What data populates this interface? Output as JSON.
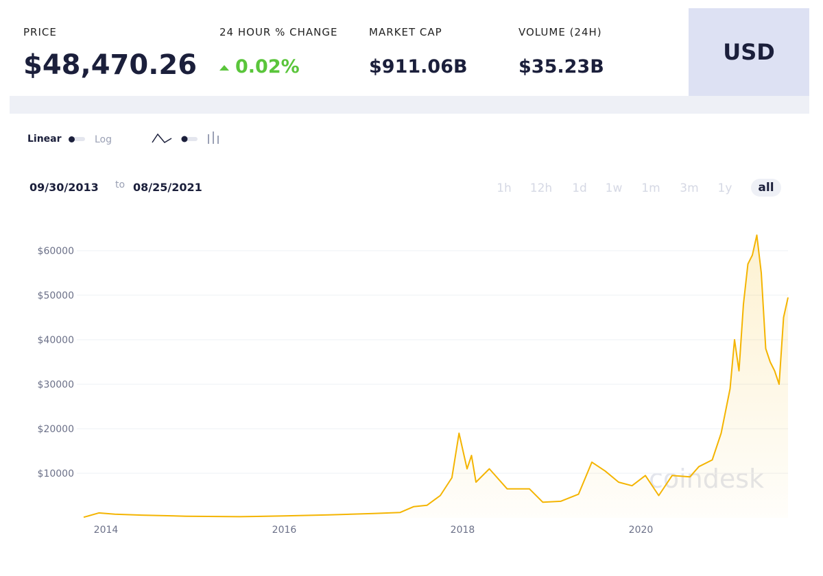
{
  "header": {
    "price": {
      "label": "PRICE",
      "value": "$48,470.26"
    },
    "change": {
      "label": "24 HOUR % CHANGE",
      "value": "0.02%"
    },
    "market_cap": {
      "label": "MARKET CAP",
      "value": "$911.06B"
    },
    "volume": {
      "label": "VOLUME (24H)",
      "value": "$35.23B"
    },
    "currency": "USD"
  },
  "controls": {
    "scale": [
      "Linear",
      "Log"
    ],
    "range": {
      "from": "09/30/2013",
      "to_word": "to",
      "to": "08/25/2021"
    },
    "periods": [
      "1h",
      "12h",
      "1d",
      "1w",
      "1m",
      "3m",
      "1y",
      "all"
    ],
    "active_period": "all"
  },
  "watermark": "coindesk",
  "chart_data": {
    "type": "line",
    "grid": true,
    "xlim": [
      2013.75,
      2021.65
    ],
    "xticks": [
      2014,
      2016,
      2018,
      2020
    ],
    "ylim": [
      0,
      64000
    ],
    "yticks": [
      {
        "value": 10000,
        "label": "$10000"
      },
      {
        "value": 20000,
        "label": "$20000"
      },
      {
        "value": 30000,
        "label": "$30000"
      },
      {
        "value": 40000,
        "label": "$40000"
      },
      {
        "value": 50000,
        "label": "$50000"
      },
      {
        "value": 60000,
        "label": "$60000"
      }
    ],
    "x": [
      2013.75,
      2013.92,
      2014.1,
      2014.4,
      2014.9,
      2015.5,
      2016.0,
      2016.5,
      2017.0,
      2017.3,
      2017.45,
      2017.6,
      2017.75,
      2017.88,
      2017.96,
      2018.05,
      2018.1,
      2018.15,
      2018.3,
      2018.5,
      2018.75,
      2018.9,
      2019.1,
      2019.3,
      2019.45,
      2019.6,
      2019.75,
      2019.9,
      2020.05,
      2020.2,
      2020.35,
      2020.55,
      2020.65,
      2020.8,
      2020.9,
      2021.0,
      2021.05,
      2021.1,
      2021.15,
      2021.2,
      2021.25,
      2021.3,
      2021.35,
      2021.4,
      2021.45,
      2021.5,
      2021.55,
      2021.6,
      2021.65
    ],
    "series": [
      {
        "color": "#f4b400",
        "values": [
          130,
          1100,
          800,
          600,
          350,
          250,
          420,
          650,
          950,
          1200,
          2500,
          2800,
          5000,
          9000,
          19000,
          11000,
          14000,
          8000,
          11000,
          6500,
          6500,
          3500,
          3700,
          5300,
          12500,
          10500,
          8000,
          7200,
          9500,
          5000,
          9500,
          9200,
          11500,
          13000,
          19000,
          29000,
          40000,
          33000,
          48000,
          57000,
          59000,
          63500,
          55000,
          38000,
          35000,
          33000,
          30000,
          45000,
          49500
        ]
      }
    ]
  }
}
